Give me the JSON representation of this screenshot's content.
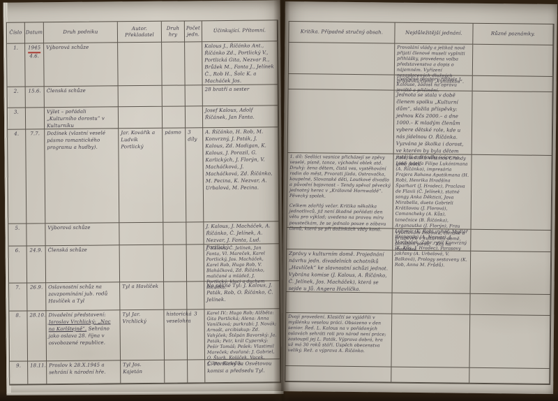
{
  "book": {
    "description": "Rukopisná kniha zápisů divadelního spolku, rok 1945",
    "ink_color": "#3e3a46",
    "red_accent": "#a83a32",
    "paper_color": "#cdc8be"
  },
  "headers": {
    "cislo": "Číslo",
    "datum": "Datum",
    "druh_podniku": "Druh podniku",
    "autor": "Autor. Překladatel",
    "druh_hry": "Druh hry",
    "pocet": "Počet jedn.",
    "ucinkujici": "Účinkující. Přítomní.",
    "kritika": "Kritika. Případně stručný obsah.",
    "jednani": "Nejdůležitější jednání.",
    "poznamky": "Různé poznámky."
  },
  "rows": [
    {
      "cislo": "1.",
      "rok": "1945",
      "datum": "4.6.",
      "druh": "Výborová schůze",
      "ucin": "Kalous J., Říčánko Ant., Říčánko Zd., Portlický V., Portlická Gita, Nezvar R., Brůžek M., Fanta J., Jelínek Č., Rob H., Šolc K. a Macháček Jos.",
      "jednani": "Provolání vlády a jelikož nově přijatí členové museli vyplniti přihlášky, provedena volba představenstva a dopis o nájemném. Vyřízení nezaplacených dlužných příspěvků členů „Vyhláškou“."
    },
    {
      "cislo": "2.",
      "datum": "15.6.",
      "druh": "Členská schůze",
      "ucin": "28 bratří a sester",
      "jednani": "Uvolněné prostory řiditele J. Kalouse, žádost na opravu jeviště a přičinění."
    },
    {
      "cislo": "3.",
      "druh": "Výlet – pořádali „Kulturního dorostu“ v Kulturníku",
      "ucin": "Josef Kalous, Adolf Říčánek, Jan Fanta.",
      "jednani": "Jednota se stala v době členem spolku „Kulturní dům“, složila příspěvky: jednou Kčs 2000.– a dne 1000.– K mladým členům vybere dětské role, kde u nás jídelnou O. Říčánka. Vyzvána je školka i dorost, ve kterém by byla dětem jistější a divadlu (více na gině jest)."
    },
    {
      "cislo": "4.",
      "datum": "7.7.",
      "druh": "Dožínek (vlastní veselé pásmo romantického programu a hudby).",
      "autor": "Jar. Kovářík a Ludvík Portlický",
      "hra": "pásmo",
      "pocet": "3 díly",
      "ucin": "A. Říčánko, H. Rob, M. Konvrzný, J. Paták, J. Kalous, Zd. Madigan, K. Kalous, J. Porazil, G. Karlických, J. Florýn, V. Macháčková, J. Macháčková, Zd. Říčánko, M. Pecina, K. Nezvar, A. Urbalová, M. Pecina.",
      "kritika": "1. díl: Sedláci vesnice přicházejí se zpěvy veselé, písně, tance, východní oblek atd. Druhý: žena dětem, čistá ves, vystěhování rodin do měst, Prvorati jízda, Ostravačka, koupelné, Slovanské děti, Loutkové divadlo a původní bojovnost – Tendy spěval pěvecký jednotný herec v „Královně Hornwaldě“. Pěvecký spolek.",
      "kritika2": "Celkem zdařilý večer. Kritika několika jednotlivců, již není škodné pořádati den větu pro výklad; uvedeno na pravou míru poustečkám, že se jednalo pouze o zábavu členů, která se při dožínkách vždy koná.",
      "jednani": "Role: sedláků většinou Grandy Lidé; Adolfa Filipa Lukánimana (A. Říčánko), impresária Frajera Rohana Apatikmana (H. Rob), Henrika Hradšína Šparhart (J. Hradec), Praclava de Flavii (Č. Jelínek), statné songy Anka Děkticií, Jova Mirabella, dueta Gabrieli Krátilovou (J. Florová), Comancheky (A. Kůs), tanečnice (B. Říčánka), Arganautka (J. Florýn), Frau Lidumír (K. Rob), rybář; Myšlář Branerský (A. Nezvar), J. Macháček, Zobr rytíř Konvrzný (K. Kůs, J. Hradec), Parasovy jakřany (A. Urbalová, V. Balková), Prology sestaveny (K. Rob, Anna M. Frůdů)."
    },
    {
      "cislo": "5.",
      "druh": "Výborová schůze",
      "ucin": "J. Kalous, J. Macháček, A. Říčánko, Č. Jelínek, A. Nezvar, J. Fanta, Lud. Portlický.",
      "jednani": "Vyúčtování Dožínku, členské a příspěvek v kulturním domě, pořádání plesů; – Kčs na rozdělení."
    },
    {
      "cislo": "6.",
      "datum": "24.9.",
      "druh": "Členská schůze",
      "ucin": "J. Kalous, Č. Jelínek, Jan Fanta, Vl. Mareček, Karel Portlický, Jos. Macháček, Karel Rob, Hugo Rob, V. Blaháčková, Zd. Říčánko, maličané a mládež, J. Portlický; kluci a duchem Říčánka.",
      "kritika": "Zprávy v kulturním domě. Projednání návrhu jedn. divadelních ochotníků „Havlíček“ ke slavnostní schůzi jednot. Vybrána komise (J. Kalous, A. Říčánko, Č. Jelínek, Jos. Macháček), která se sejde u Jů. Angera Havlíčka."
    },
    {
      "cislo": "7.",
      "datum": "26.9.",
      "druh": "Oslavnostní schůz na zavzpomínání jub. rodů Havlíček a Tyl",
      "autor": "Tyl a Havlíček",
      "ucin": "Na pěkné Tyl: J. Kalous, J. Paták, Rob, O. Říčánko, Č. Jelínek."
    },
    {
      "cislo": "8.",
      "datum": "28.10.",
      "druh_pre": "Divadelní představení: ",
      "druh_ul": "Jaroslav Vrchlický: „Noc na Karlštejně“.",
      "druh_post": " Sehráno jako oslava 28. října v osvobozené republice.",
      "autor": "Tyl Jar. Vrchlický",
      "hra": "historická veselohra",
      "pocet": "3",
      "ucin": "Karel IV.: Hugo Rob; Alžběta: Gita Portlická; Alena: Anna Vaníčková; purkrabí: J. Novák; Arnošt, arcibiskup: Zd. Vahýček; Štěpán Bavorský: Ja. Paták; Petr, král Cyperský: Pešír Tomáš; Pešek: Vlastimil Mareček; dvořané: J. Gabriel, O. Štork, Koláček, Vacek, Čížan, Konečík.",
      "kritika": "Dvojí provedení. Klasičtí se vyjádřili v myšlénku veselou práci. Obsazeno v den senior. Řed. L. Kalous na v pořádaných oslavách sehráti roli pro národ není práce; zastoupil jej L. Paták. Výprava dobrá, hra už má 30 roků stáří. Úspěch obecenstva veliký. Rež. a výprava A. Říčánko."
    },
    {
      "cislo": "9.",
      "datum": "18.11.",
      "druh": "Proslov k 28.X.1945 a sehrání k národní hře.",
      "autor": "Tyl Jos. Kajetán",
      "ucin": "L. Portlický za Osvětovou komisi a předsedu Tyl."
    }
  ]
}
